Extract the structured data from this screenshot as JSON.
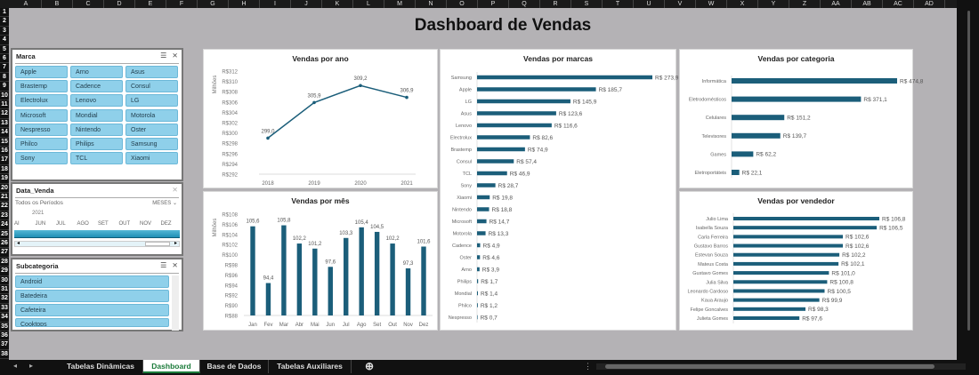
{
  "sheet": {
    "columns": [
      "A",
      "B",
      "C",
      "D",
      "E",
      "F",
      "G",
      "H",
      "I",
      "J",
      "K",
      "L",
      "M",
      "N",
      "O",
      "P",
      "Q",
      "R",
      "S",
      "T",
      "U",
      "V",
      "W",
      "X",
      "Y",
      "Z",
      "AA",
      "AB",
      "AC",
      "AD"
    ],
    "row_count": 38
  },
  "title": "Dashboard de Vendas",
  "accent": "#1b5e7a",
  "slicers": {
    "marca": {
      "title": "Marca",
      "items": [
        "Apple",
        "Arno",
        "Asus",
        "Brastemp",
        "Cadence",
        "Consul",
        "Electrolux",
        "Lenovo",
        "LG",
        "Microsoft",
        "Mondial",
        "Motorola",
        "Nespresso",
        "Nintendo",
        "Oster",
        "Philco",
        "Philips",
        "Samsung",
        "Sony",
        "TCL",
        "Xiaomi"
      ]
    },
    "data_venda": {
      "title": "Data_Venda",
      "period": "Todos os Períodos",
      "level": "MESES",
      "year": "2021",
      "months": [
        "AI",
        "JUN",
        "JUL",
        "AGO",
        "SET",
        "OUT",
        "NOV",
        "DEZ"
      ]
    },
    "subcategoria": {
      "title": "Subcategoria",
      "items": [
        "Android",
        "Batedeira",
        "Cafeteira",
        "Cooktops"
      ]
    }
  },
  "chart_data": [
    {
      "type": "line",
      "title": "Vendas por ano",
      "ylabel": "Milhões",
      "categories": [
        "2018",
        "2019",
        "2020",
        "2021"
      ],
      "values": [
        299.0,
        305.9,
        309.2,
        306.9
      ],
      "labels": [
        "299,0",
        "305,9",
        "309,2",
        "306,9"
      ],
      "ylim": [
        292,
        312
      ],
      "yticks": [
        "R$312",
        "R$310",
        "R$308",
        "R$306",
        "R$304",
        "R$302",
        "R$300",
        "R$298",
        "R$296",
        "R$294",
        "R$292"
      ]
    },
    {
      "type": "bar",
      "title": "Vendas por mês",
      "ylabel": "Milhões",
      "categories": [
        "Jan",
        "Fev",
        "Mar",
        "Abr",
        "Mai",
        "Jun",
        "Jul",
        "Ago",
        "Set",
        "Out",
        "Nov",
        "Dez"
      ],
      "values": [
        105.6,
        94.4,
        105.8,
        102.2,
        101.2,
        97.6,
        103.3,
        105.4,
        104.5,
        102.2,
        97.3,
        101.6
      ],
      "labels": [
        "105,6",
        "94,4",
        "105,8",
        "102,2",
        "101,2",
        "97,6",
        "103,3",
        "105,4",
        "104,5",
        "102,2",
        "97,3",
        "101,6"
      ],
      "ylim": [
        88,
        108
      ],
      "yticks": [
        "R$108",
        "R$106",
        "R$104",
        "R$102",
        "R$100",
        "R$98",
        "R$96",
        "R$94",
        "R$92",
        "R$90",
        "R$88"
      ]
    },
    {
      "type": "bar",
      "orientation": "horizontal",
      "title": "Vendas por marcas",
      "categories": [
        "Samsung",
        "Apple",
        "LG",
        "Asus",
        "Lenovo",
        "Electrolux",
        "Brastemp",
        "Consul",
        "TCL",
        "Sony",
        "Xiaomi",
        "Nintendo",
        "Microsoft",
        "Motorola",
        "Cadence",
        "Oster",
        "Arno",
        "Philips",
        "Mondial",
        "Philco",
        "Nespresso"
      ],
      "values": [
        273.9,
        185.7,
        145.9,
        123.6,
        116.6,
        82.6,
        74.9,
        57.4,
        46.9,
        28.7,
        19.8,
        18.8,
        14.7,
        13.3,
        4.9,
        4.6,
        3.9,
        1.7,
        1.4,
        1.2,
        0.7
      ],
      "labels": [
        "R$ 273,9",
        "R$ 185,7",
        "R$ 145,9",
        "R$ 123,6",
        "R$ 116,6",
        "R$ 82,6",
        "R$ 74,9",
        "R$ 57,4",
        "R$ 46,9",
        "R$ 28,7",
        "R$ 19,8",
        "R$ 18,8",
        "R$ 14,7",
        "R$ 13,3",
        "R$ 4,9",
        "R$ 4,6",
        "R$ 3,9",
        "R$ 1,7",
        "R$ 1,4",
        "R$ 1,2",
        "R$ 0,7"
      ],
      "xlim": [
        0,
        273.9
      ]
    },
    {
      "type": "bar",
      "orientation": "horizontal",
      "title": "Vendas por categoria",
      "categories": [
        "Informática",
        "Eletrodomésticos",
        "Celulares",
        "Televisores",
        "Games",
        "Eletroportáteis"
      ],
      "values": [
        474.8,
        371.1,
        151.2,
        139.7,
        62.2,
        22.1
      ],
      "labels": [
        "R$ 474,8",
        "R$ 371,1",
        "R$ 151,2",
        "R$ 139,7",
        "R$ 62,2",
        "R$ 22,1"
      ],
      "xlim": [
        0,
        474.8
      ]
    },
    {
      "type": "bar",
      "orientation": "horizontal",
      "title": "Vendas por vendedor",
      "categories": [
        "Julio Lima",
        "Isabella Souza",
        "Carla Ferreira",
        "Gustavo Barros",
        "Estevan Souza",
        "Mateus Costa",
        "Gustavo Gomes",
        "Julia Silva",
        "Leonardo Cardoso",
        "Kaua Araujo",
        "Felipe Goncalves",
        "Julieta Gomes"
      ],
      "values": [
        106.8,
        106.5,
        102.6,
        102.6,
        102.2,
        102.1,
        101.0,
        100.8,
        100.5,
        99.9,
        98.3,
        97.6
      ],
      "labels": [
        "R$ 106,8",
        "R$ 106,5",
        "R$ 102,6",
        "R$ 102,6",
        "R$ 102,2",
        "R$ 102,1",
        "R$ 101,0",
        "R$ 100,8",
        "R$ 100,5",
        "R$ 99,9",
        "R$ 98,3",
        "R$ 97,6"
      ],
      "xlim": [
        90,
        106.8
      ]
    }
  ],
  "tabs": {
    "items": [
      "Tabelas Dinâmicas",
      "Dashboard",
      "Base de Dados",
      "Tabelas Auxiliares"
    ],
    "active": "Dashboard",
    "add": "⊕"
  }
}
